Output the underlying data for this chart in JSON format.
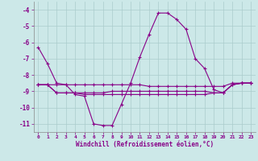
{
  "background_color": "#cce8e8",
  "grid_color": "#aacccc",
  "line_color": "#880088",
  "marker": "+",
  "xlabel": "Windchill (Refroidissement éolien,°C)",
  "xlim": [
    -0.5,
    23.5
  ],
  "ylim": [
    -11.5,
    -3.5
  ],
  "yticks": [
    -11,
    -10,
    -9,
    -8,
    -7,
    -6,
    -5,
    -4
  ],
  "xticks": [
    0,
    1,
    2,
    3,
    4,
    5,
    6,
    7,
    8,
    9,
    10,
    11,
    12,
    13,
    14,
    15,
    16,
    17,
    18,
    19,
    20,
    21,
    22,
    23
  ],
  "series": [
    [
      -6.3,
      -7.3,
      -8.5,
      -8.6,
      -9.2,
      -9.3,
      -11.0,
      -11.1,
      -11.1,
      -9.8,
      -8.5,
      -6.9,
      -5.5,
      -4.2,
      -4.2,
      -4.6,
      -5.2,
      -7.0,
      -7.6,
      -8.9,
      -9.1,
      -8.6,
      -8.5,
      -8.5
    ],
    [
      -8.6,
      -8.6,
      -8.6,
      -8.6,
      -8.6,
      -8.6,
      -8.6,
      -8.6,
      -8.6,
      -8.6,
      -8.6,
      -8.6,
      -8.7,
      -8.7,
      -8.7,
      -8.7,
      -8.7,
      -8.7,
      -8.7,
      -8.7,
      -8.7,
      -8.5,
      -8.5,
      -8.5
    ],
    [
      -8.6,
      -8.6,
      -9.1,
      -9.1,
      -9.1,
      -9.1,
      -9.1,
      -9.1,
      -9.0,
      -9.0,
      -9.0,
      -9.0,
      -9.0,
      -9.0,
      -9.0,
      -9.0,
      -9.0,
      -9.0,
      -9.0,
      -9.1,
      -9.1,
      -8.6,
      -8.5,
      -8.5
    ],
    [
      -8.6,
      -8.6,
      -9.1,
      -9.1,
      -9.1,
      -9.2,
      -9.2,
      -9.2,
      -9.2,
      -9.2,
      -9.2,
      -9.2,
      -9.2,
      -9.2,
      -9.2,
      -9.2,
      -9.2,
      -9.2,
      -9.2,
      -9.1,
      -9.1,
      -8.6,
      -8.5,
      -8.5
    ]
  ]
}
